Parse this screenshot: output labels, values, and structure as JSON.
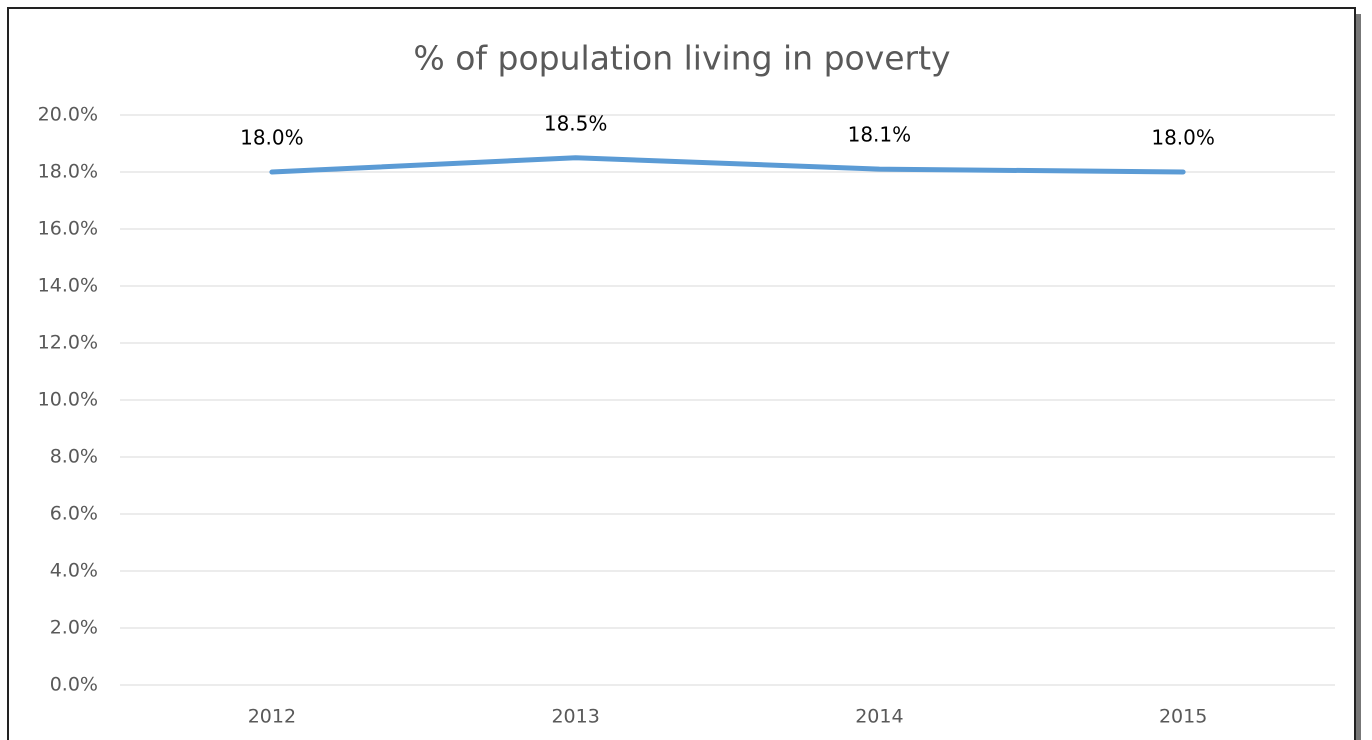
{
  "chart_data": {
    "type": "line",
    "title": "% of population living in poverty",
    "categories": [
      "2012",
      "2013",
      "2014",
      "2015"
    ],
    "series": [
      {
        "name": "% of population living in poverty",
        "color": "#5b9bd5",
        "values": [
          18.0,
          18.5,
          18.1,
          18.0
        ],
        "value_labels": [
          "18.0%",
          "18.5%",
          "18.1%",
          "18.0%"
        ]
      }
    ],
    "ylim": [
      0,
      20
    ],
    "yticks": [
      {
        "value": 0,
        "label": "0.0%"
      },
      {
        "value": 2,
        "label": "2.0%"
      },
      {
        "value": 4,
        "label": "4.0%"
      },
      {
        "value": 6,
        "label": "6.0%"
      },
      {
        "value": 8,
        "label": "8.0%"
      },
      {
        "value": 10,
        "label": "10.0%"
      },
      {
        "value": 12,
        "label": "12.0%"
      },
      {
        "value": 14,
        "label": "14.0%"
      },
      {
        "value": 16,
        "label": "16.0%"
      },
      {
        "value": 18,
        "label": "18.0%"
      },
      {
        "value": 20,
        "label": "20.0%"
      }
    ],
    "grid": true
  }
}
